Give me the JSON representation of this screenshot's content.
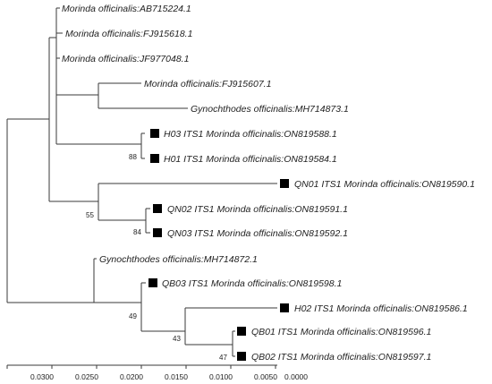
{
  "tree": {
    "taxa": [
      {
        "id": "t1",
        "label": "Morinda officinalis:AB715224.1",
        "marked": false
      },
      {
        "id": "t2",
        "label": "Morinda officinalis:FJ915618.1",
        "marked": false
      },
      {
        "id": "t3",
        "label": "Morinda officinalis:JF977048.1",
        "marked": false
      },
      {
        "id": "t4",
        "label": "Morinda officinalis:FJ915607.1",
        "marked": false
      },
      {
        "id": "t5",
        "label": "Gynochthodes officinalis:MH714873.1",
        "marked": false
      },
      {
        "id": "t6",
        "label": "H03 ITS1 Morinda officinalis:ON819588.1",
        "marked": true
      },
      {
        "id": "t7",
        "label": "H01 ITS1 Morinda officinalis:ON819584.1",
        "marked": true
      },
      {
        "id": "t8",
        "label": "QN01 ITS1 Morinda officinalis:ON819590.1",
        "marked": true
      },
      {
        "id": "t9",
        "label": "QN02 ITS1 Morinda officinalis:ON819591.1",
        "marked": true
      },
      {
        "id": "t10",
        "label": "QN03 ITS1 Morinda officinalis:ON819592.1",
        "marked": true
      },
      {
        "id": "t11",
        "label": "Gynochthodes officinalis:MH714872.1",
        "marked": false
      },
      {
        "id": "t12",
        "label": "QB03 ITS1 Morinda officinalis:ON819598.1",
        "marked": true
      },
      {
        "id": "t13",
        "label": "H02 ITS1 Morinda officinalis:ON819586.1",
        "marked": true
      },
      {
        "id": "t14",
        "label": "QB01 ITS1 Morinda officinalis:ON819596.1",
        "marked": true
      },
      {
        "id": "t15",
        "label": "QB02 ITS1 Morinda officinalis:ON819597.1",
        "marked": true
      }
    ],
    "bootstrap": [
      {
        "clade": "H03 + H01",
        "value": "88"
      },
      {
        "clade": "QN01 + QN02 + QN03",
        "value": "55"
      },
      {
        "clade": "QN02 + QN03",
        "value": "84"
      },
      {
        "clade": "QB03 + H02 + QB01 + QB02",
        "value": "49"
      },
      {
        "clade": "H02 + QB01 + QB02",
        "value": "43"
      },
      {
        "clade": "QB01 + QB02",
        "value": "47"
      }
    ],
    "scale_axis": {
      "ticks": [
        "0.0300",
        "0.0250",
        "0.0200",
        "0.0150",
        "0.0100",
        "0.0050",
        "0.0000"
      ]
    },
    "colors": {
      "branch": "#3a3a3a",
      "marker": "#000000",
      "text": "#222222"
    }
  }
}
